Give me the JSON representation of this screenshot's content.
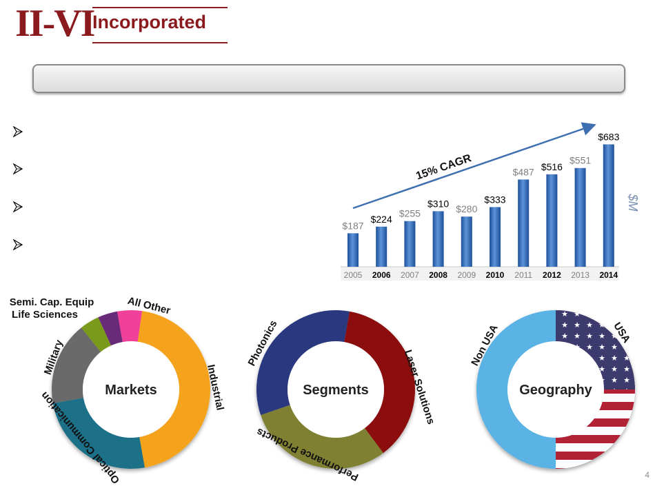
{
  "logo": {
    "mark": "II-VI",
    "wordmark": "Incorporated"
  },
  "title_bar": {
    "text": ""
  },
  "bullets": [
    "",
    "",
    "",
    ""
  ],
  "chart_data": {
    "type": "bar",
    "categories": [
      "2005",
      "2006",
      "2007",
      "2008",
      "2009",
      "2010",
      "2011",
      "2012",
      "2013",
      "2014"
    ],
    "values": [
      187,
      224,
      255,
      310,
      280,
      333,
      487,
      516,
      551,
      683
    ],
    "data_labels": [
      "$187",
      "$224",
      "$255",
      "$310",
      "$280",
      "$333",
      "$487",
      "$516",
      "$551",
      "$683"
    ],
    "label_style": [
      "gray",
      "black",
      "gray",
      "black",
      "gray",
      "black",
      "gray",
      "black",
      "gray",
      "black"
    ],
    "ylabel": "$M",
    "ylim": [
      0,
      700
    ],
    "annotation": "15% CAGR",
    "grid": false
  },
  "donuts": [
    {
      "center_label": "Markets",
      "segments": [
        {
          "name": "Industrial",
          "value": 45,
          "color": "#f5a31a"
        },
        {
          "name": "Optical Communication",
          "value": 25,
          "color": "#1a7088"
        },
        {
          "name": "Military",
          "value": 17,
          "color": "#6b6b6b"
        },
        {
          "name": "Life Sciences",
          "value": 4,
          "color": "#7a9a1a"
        },
        {
          "name": "Semi. Cap. Equip",
          "value": 4,
          "color": "#6a2a7a"
        },
        {
          "name": "All Other",
          "value": 5,
          "color": "#f0409a"
        }
      ]
    },
    {
      "center_label": "Segments",
      "segments": [
        {
          "name": "Laser Solutions",
          "value": 37,
          "color": "#8b0e0e"
        },
        {
          "name": "Performance Products",
          "value": 30,
          "color": "#7f8030"
        },
        {
          "name": "Photonics",
          "value": 33,
          "color": "#2b3780"
        }
      ]
    },
    {
      "center_label": "Geography",
      "segments": [
        {
          "name": "USA",
          "value": 50,
          "color": "#b22234"
        },
        {
          "name": "Non USA",
          "value": 50,
          "color": "#5ab3e4"
        }
      ]
    }
  ],
  "page_number": "4"
}
